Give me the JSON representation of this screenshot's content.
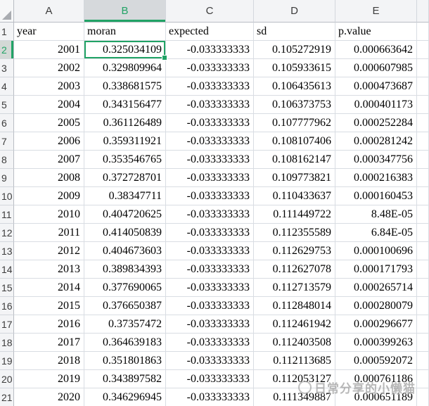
{
  "sheet": {
    "column_headers": [
      "A",
      "B",
      "C",
      "D",
      "E",
      ""
    ],
    "selected_column": "B",
    "selected_row": 2,
    "selected_cell": "B2",
    "selected_value": "0.325034109",
    "field_header_row": {
      "n": 1,
      "cells": [
        "year",
        "moran",
        "expected",
        "sd",
        "p.value"
      ]
    },
    "data_rows": [
      {
        "n": 2,
        "cells": [
          "2001",
          "0.325034109",
          "-0.033333333",
          "0.105272919",
          "0.000663642"
        ]
      },
      {
        "n": 3,
        "cells": [
          "2002",
          "0.329809964",
          "-0.033333333",
          "0.105933615",
          "0.000607985"
        ]
      },
      {
        "n": 4,
        "cells": [
          "2003",
          "0.338681575",
          "-0.033333333",
          "0.106435613",
          "0.000473687"
        ]
      },
      {
        "n": 5,
        "cells": [
          "2004",
          "0.343156477",
          "-0.033333333",
          "0.106373753",
          "0.000401173"
        ]
      },
      {
        "n": 6,
        "cells": [
          "2005",
          "0.361126489",
          "-0.033333333",
          "0.107777962",
          "0.000252284"
        ]
      },
      {
        "n": 7,
        "cells": [
          "2006",
          "0.359311921",
          "-0.033333333",
          "0.108107406",
          "0.000281242"
        ]
      },
      {
        "n": 8,
        "cells": [
          "2007",
          "0.353546765",
          "-0.033333333",
          "0.108162147",
          "0.000347756"
        ]
      },
      {
        "n": 9,
        "cells": [
          "2008",
          "0.372728701",
          "-0.033333333",
          "0.109773821",
          "0.000216383"
        ]
      },
      {
        "n": 10,
        "cells": [
          "2009",
          "0.38347711",
          "-0.033333333",
          "0.110433637",
          "0.000160453"
        ]
      },
      {
        "n": 11,
        "cells": [
          "2010",
          "0.404720625",
          "-0.033333333",
          "0.111449722",
          "8.48E-05"
        ]
      },
      {
        "n": 12,
        "cells": [
          "2011",
          "0.414050839",
          "-0.033333333",
          "0.112355589",
          "6.84E-05"
        ]
      },
      {
        "n": 13,
        "cells": [
          "2012",
          "0.404673603",
          "-0.033333333",
          "0.112629753",
          "0.000100696"
        ]
      },
      {
        "n": 14,
        "cells": [
          "2013",
          "0.389834393",
          "-0.033333333",
          "0.112627078",
          "0.000171793"
        ]
      },
      {
        "n": 15,
        "cells": [
          "2014",
          "0.377690065",
          "-0.033333333",
          "0.112713579",
          "0.000265714"
        ]
      },
      {
        "n": 16,
        "cells": [
          "2015",
          "0.376650387",
          "-0.033333333",
          "0.112848014",
          "0.000280079"
        ]
      },
      {
        "n": 17,
        "cells": [
          "2016",
          "0.37357472",
          "-0.033333333",
          "0.112461942",
          "0.000296677"
        ]
      },
      {
        "n": 18,
        "cells": [
          "2017",
          "0.364639183",
          "-0.033333333",
          "0.112403508",
          "0.000399263"
        ]
      },
      {
        "n": 19,
        "cells": [
          "2018",
          "0.351801863",
          "-0.033333333",
          "0.112113685",
          "0.000592072"
        ]
      },
      {
        "n": 20,
        "cells": [
          "2019",
          "0.343897582",
          "-0.033333333",
          "0.112053127",
          "0.000761186"
        ]
      },
      {
        "n": 21,
        "cells": [
          "2020",
          "0.346296945",
          "-0.033333333",
          "0.111349887",
          "0.000651189"
        ]
      }
    ]
  },
  "colors": {
    "accent_green": "#21a366",
    "selected_header_bg": "#d6d9dc",
    "header_bg": "#f3f4f6",
    "gridline": "#d9dde3"
  },
  "watermark": {
    "icon": "cat-logo",
    "text": "日常分享的小懒猫"
  }
}
